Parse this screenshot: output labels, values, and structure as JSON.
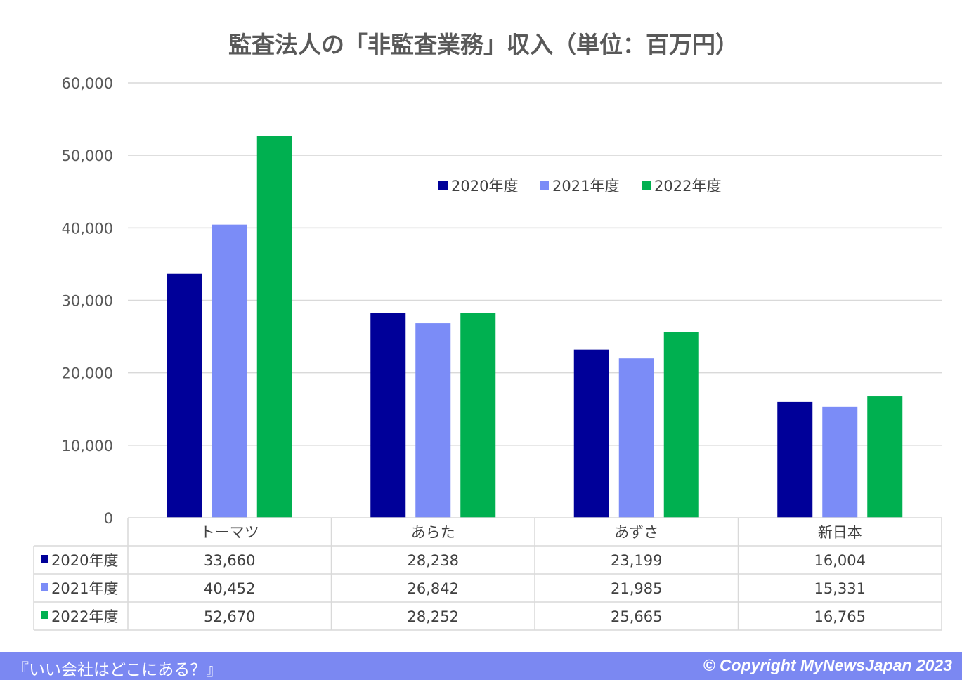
{
  "chart_data": {
    "type": "bar",
    "title": "監査法人の「非監査業務」収入（単位：百万円）",
    "categories": [
      "トーマツ",
      "あらた",
      "あずさ",
      "新日本"
    ],
    "series": [
      {
        "name": "2020年度",
        "values": [
          33660,
          28238,
          23199,
          16004
        ],
        "labels": [
          "33,660",
          "28,238",
          "23,199",
          "16,004"
        ],
        "color": "#000099"
      },
      {
        "name": "2021年度",
        "values": [
          40452,
          26842,
          21985,
          15331
        ],
        "labels": [
          "40,452",
          "26,842",
          "21,985",
          "15,331"
        ],
        "color": "#7b8cf7"
      },
      {
        "name": "2022年度",
        "values": [
          52670,
          28252,
          25665,
          16765
        ],
        "labels": [
          "52,670",
          "28,252",
          "25,665",
          "16,765"
        ],
        "color": "#00b050"
      }
    ],
    "ylim": [
      0,
      60000
    ],
    "yticks": [
      0,
      10000,
      20000,
      30000,
      40000,
      50000,
      60000
    ],
    "ytick_labels": [
      "0",
      "10,000",
      "20,000",
      "30,000",
      "40,000",
      "50,000",
      "60,000"
    ],
    "grid": true,
    "legend_position": "top-center",
    "data_table": true
  },
  "footer": {
    "left": "『いい会社はどこにある？』",
    "right": "© Copyright   MyNewsJapan 2023"
  }
}
